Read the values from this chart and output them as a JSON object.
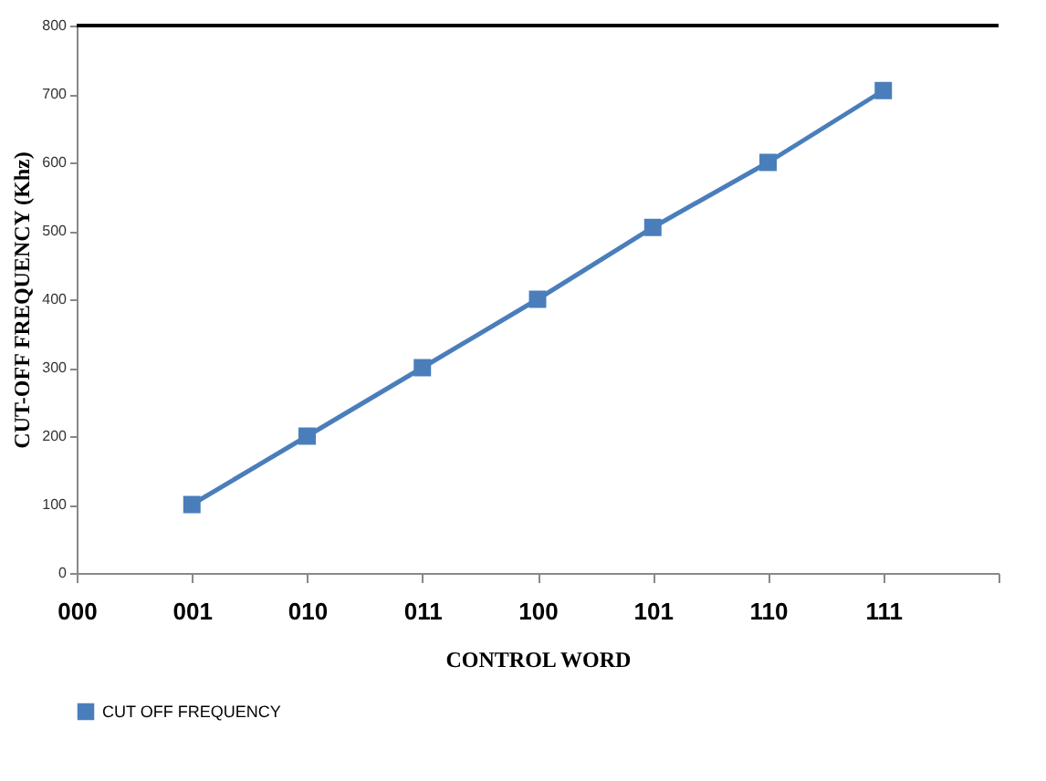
{
  "chart_data": {
    "type": "line",
    "xlabel": "CONTROL WORD",
    "ylabel": "CUT-OFF FREQUENCY  (Khz)",
    "categories": [
      "000",
      "001",
      "010",
      "011",
      "100",
      "101",
      "110",
      "111",
      null
    ],
    "series": [
      {
        "name": "CUT OFF FREQUENCY",
        "color": "#4a7ebb",
        "values": [
          null,
          100,
          200,
          300,
          400,
          505,
          600,
          705,
          null
        ]
      }
    ],
    "ylim": [
      0,
      800
    ],
    "yticks": [
      0,
      100,
      200,
      300,
      400,
      500,
      600,
      700,
      800
    ],
    "grid": false,
    "legend": "bottom",
    "marker": "square",
    "line_style": "solid"
  }
}
